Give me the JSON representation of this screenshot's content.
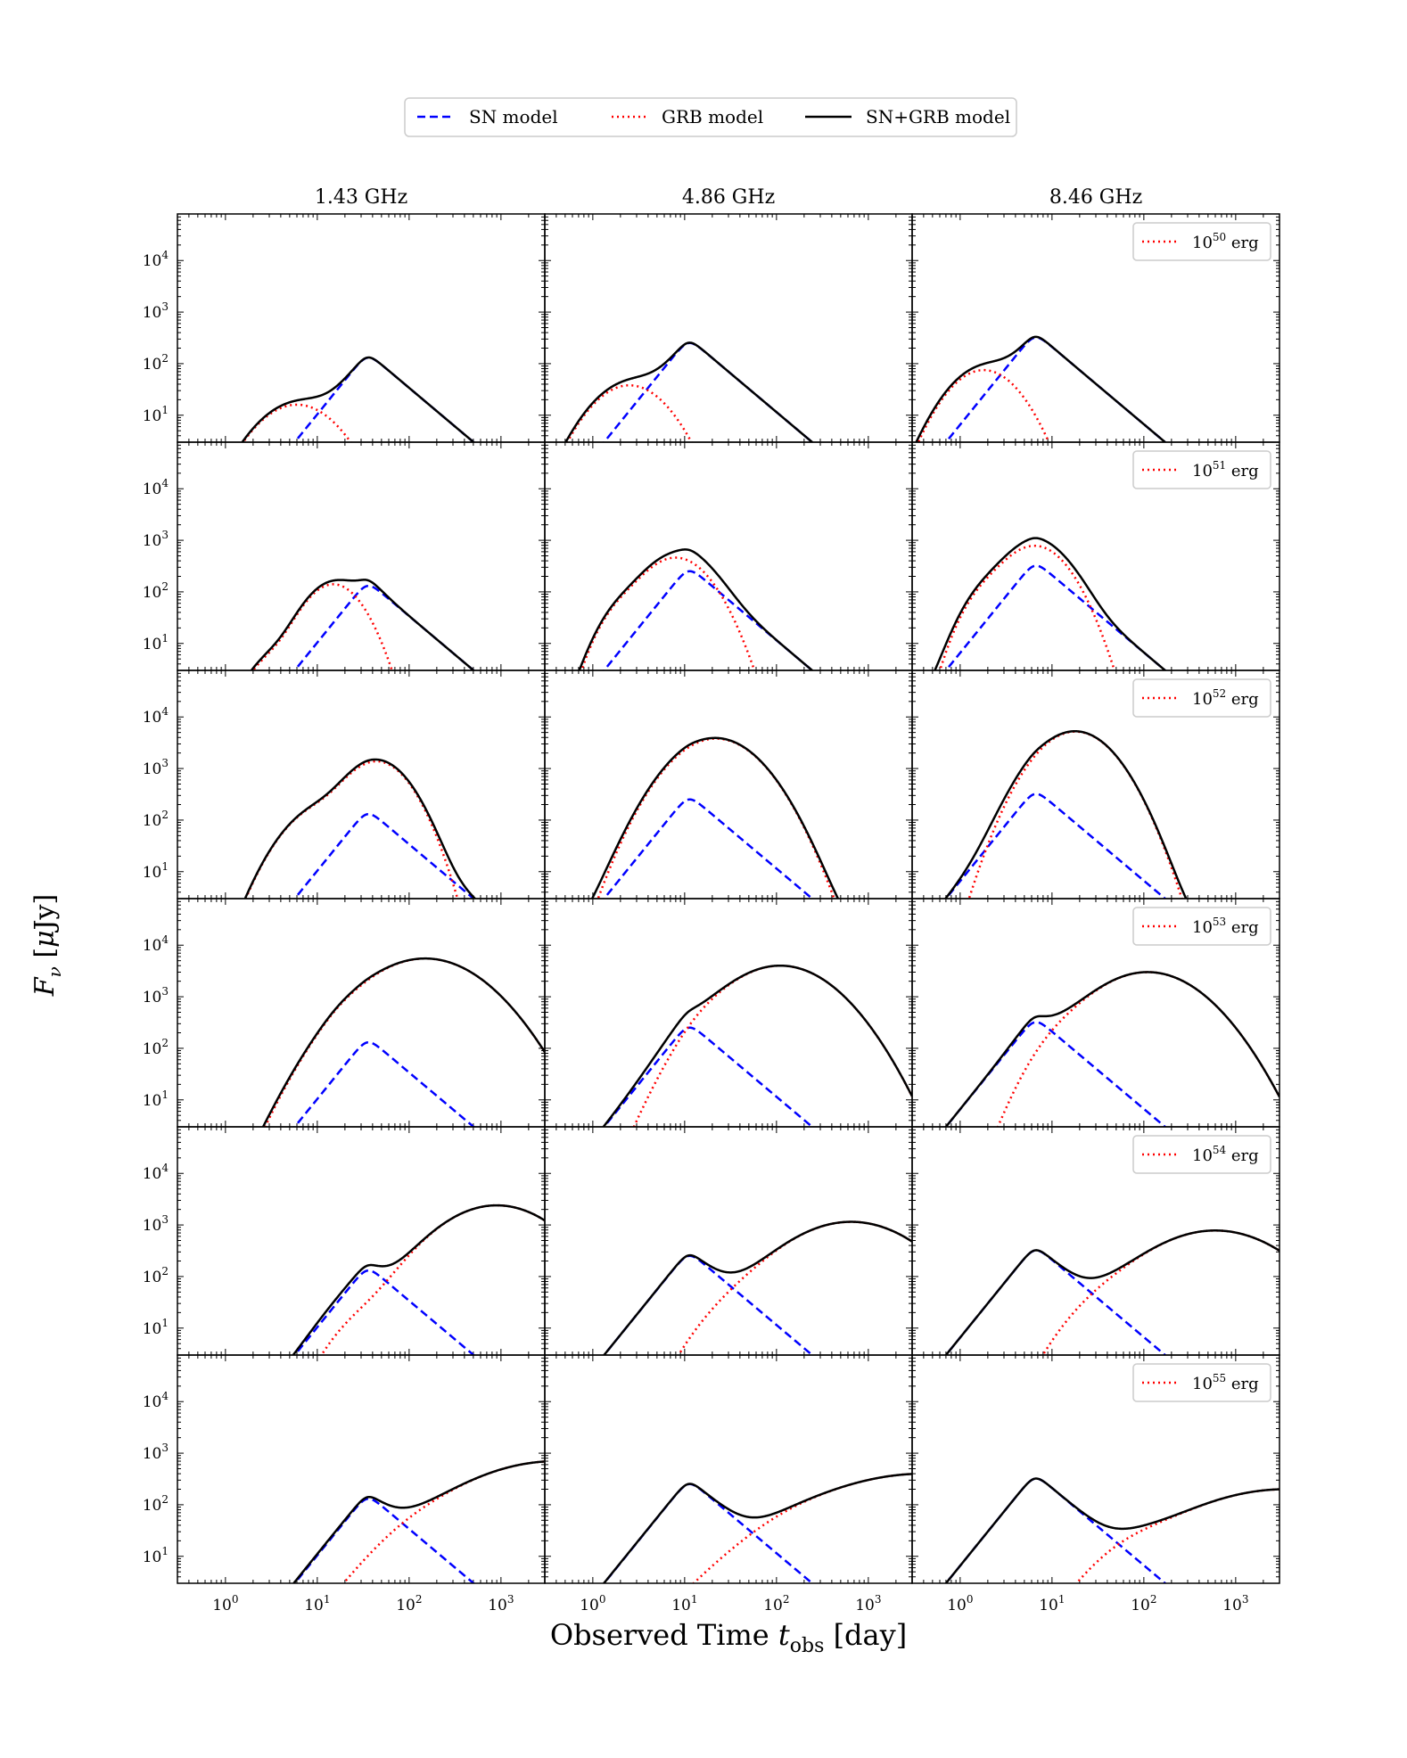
{
  "figure": {
    "ylabel": "F_ν [μJy]",
    "xlabel": "Observed Time t_obs [day]"
  },
  "legend": {
    "items": [
      {
        "label": "SN model",
        "style": "dashed",
        "color": "#0000ff"
      },
      {
        "label": "GRB model",
        "style": "dotted",
        "color": "#ff0000"
      },
      {
        "label": "SN+GRB model",
        "style": "solid",
        "color": "#000000"
      }
    ]
  },
  "columns": [
    "1.43 GHz",
    "4.86 GHz",
    "8.46 GHz"
  ],
  "energy_labels": [
    {
      "base": "10",
      "exp": "50",
      "unit": "erg"
    },
    {
      "base": "10",
      "exp": "51",
      "unit": "erg"
    },
    {
      "base": "10",
      "exp": "52",
      "unit": "erg"
    },
    {
      "base": "10",
      "exp": "53",
      "unit": "erg"
    },
    {
      "base": "10",
      "exp": "54",
      "unit": "erg"
    },
    {
      "base": "10",
      "exp": "55",
      "unit": "erg"
    }
  ],
  "colors": {
    "sn": "#0000ff",
    "grb": "#ff0000",
    "total": "#000000"
  },
  "chart_data": {
    "type": "line",
    "xscale": "log",
    "yscale": "log",
    "xlim": [
      0.3,
      3000
    ],
    "ylim": [
      3,
      80000
    ],
    "x_ticks": [
      1,
      10,
      100,
      1000
    ],
    "y_ticks": [
      10,
      100,
      1000,
      10000
    ],
    "tick_label": {
      "base": "10",
      "exps": [
        "0",
        "1",
        "2",
        "3",
        "4"
      ]
    },
    "sn_model": [
      {
        "freq": "1.43 GHz",
        "peak_time": 35,
        "peak_flux": 130,
        "rise_slope": 2.2,
        "decay_slope": -1.5
      },
      {
        "freq": "4.86 GHz",
        "peak_time": 11,
        "peak_flux": 250,
        "rise_slope": 2.2,
        "decay_slope": -1.5
      },
      {
        "freq": "8.46 GHz",
        "peak_time": 6.5,
        "peak_flux": 320,
        "rise_slope": 2.2,
        "decay_slope": -1.5
      }
    ],
    "grb_model": [
      [
        {
          "energy_erg": "1e50",
          "components": [
            {
              "t": 6,
              "f": 16,
              "w": 0.32
            }
          ]
        },
        {
          "energy_erg": "1e50",
          "components": [
            {
              "t": 2.5,
              "f": 38,
              "w": 0.3
            }
          ]
        },
        {
          "energy_erg": "1e50",
          "components": [
            {
              "t": 1.8,
              "f": 75,
              "w": 0.28
            }
          ]
        }
      ],
      [
        {
          "energy_erg": "1e51",
          "components": [
            {
              "t": 15,
              "f": 140,
              "w": 0.23
            },
            {
              "t": 4,
              "f": 6,
              "w": 0.25
            }
          ]
        },
        {
          "energy_erg": "1e51",
          "components": [
            {
              "t": 8,
              "f": 460,
              "w": 0.27
            },
            {
              "t": 2.2,
              "f": 40,
              "w": 0.2
            }
          ]
        },
        {
          "energy_erg": "1e51",
          "components": [
            {
              "t": 6.5,
              "f": 780,
              "w": 0.26
            },
            {
              "t": 2,
              "f": 80,
              "w": 0.2
            }
          ]
        }
      ],
      [
        {
          "energy_erg": "1e52",
          "components": [
            {
              "t": 45,
              "f": 1350,
              "w": 0.25
            },
            {
              "t": 12,
              "f": 180,
              "w": 0.3
            }
          ]
        },
        {
          "energy_erg": "1e52",
          "components": [
            {
              "t": 22,
              "f": 3800,
              "w": 0.34
            }
          ]
        },
        {
          "energy_erg": "1e52",
          "components": [
            {
              "t": 18,
              "f": 5200,
              "w": 0.3
            }
          ]
        }
      ],
      [
        {
          "energy_erg": "1e53",
          "components": [
            {
              "t": 150,
              "f": 5500,
              "w": 0.45
            },
            {
              "t": 20,
              "f": 40,
              "w": 0.15
            }
          ]
        },
        {
          "energy_erg": "1e53",
          "components": [
            {
              "t": 110,
              "f": 4000,
              "w": 0.42
            },
            {
              "t": 20,
              "f": 65,
              "w": 0.2
            }
          ]
        },
        {
          "energy_erg": "1e53",
          "components": [
            {
              "t": 110,
              "f": 3000,
              "w": 0.43
            },
            {
              "t": 15,
              "f": 80,
              "w": 0.25
            }
          ]
        }
      ],
      [
        {
          "energy_erg": "1e54",
          "components": [
            {
              "t": 900,
              "f": 2400,
              "w": 0.45
            },
            {
              "t": 40,
              "f": 15,
              "w": 0.3
            }
          ]
        },
        {
          "energy_erg": "1e54",
          "components": [
            {
              "t": 650,
              "f": 1150,
              "w": 0.5
            },
            {
              "t": 50,
              "f": 22,
              "w": 0.35
            }
          ]
        },
        {
          "energy_erg": "1e54",
          "components": [
            {
              "t": 600,
              "f": 780,
              "w": 0.52
            },
            {
              "t": 50,
              "f": 25,
              "w": 0.35
            }
          ]
        }
      ],
      [
        {
          "energy_erg": "1e55",
          "components": [
            {
              "t": 4000,
              "f": 700,
              "w": 0.7
            },
            {
              "t": 150,
              "f": 5.5,
              "w": 0.3
            }
          ]
        },
        {
          "energy_erg": "1e55",
          "components": [
            {
              "t": 4000,
              "f": 400,
              "w": 0.8
            },
            {
              "t": 200,
              "f": 7,
              "w": 0.35
            }
          ]
        },
        {
          "energy_erg": "1e55",
          "components": [
            {
              "t": 3500,
              "f": 200,
              "w": 0.75
            },
            {
              "t": 100,
              "f": 9,
              "w": 0.35
            }
          ]
        }
      ]
    ]
  }
}
